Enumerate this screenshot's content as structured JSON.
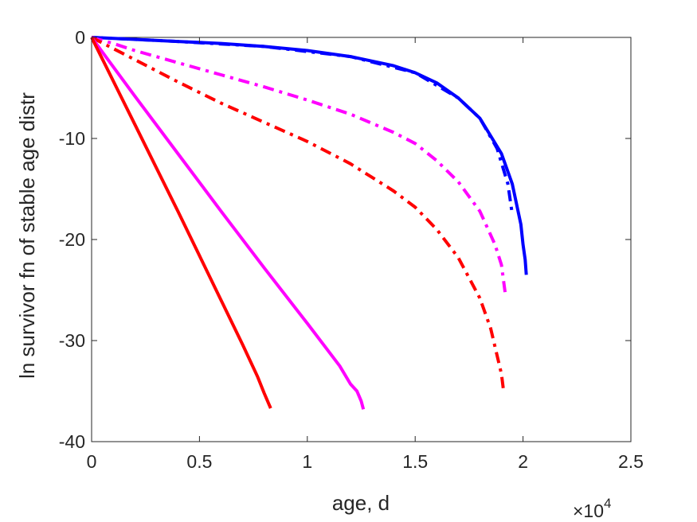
{
  "chart_data": {
    "type": "line",
    "title": "",
    "xlabel": "age, d",
    "ylabel": "ln survivor fn of stable age distr",
    "x_multiplier_label": "×10",
    "x_multiplier_exponent": "4",
    "xlim": [
      0,
      25000
    ],
    "ylim": [
      -40,
      0
    ],
    "xticks": [
      0,
      5000,
      10000,
      15000,
      20000,
      25000
    ],
    "xtick_labels": [
      "0",
      "0.5",
      "1",
      "1.5",
      "2",
      "2.5"
    ],
    "yticks": [
      0,
      -10,
      -20,
      -30,
      -40
    ],
    "ytick_labels": [
      "0",
      "-10",
      "-20",
      "-30",
      "-40"
    ],
    "grid": false,
    "series": [
      {
        "color": "#0000ff",
        "dash": "solid",
        "points": [
          [
            0,
            0
          ],
          [
            2000,
            -0.2
          ],
          [
            4000,
            -0.4
          ],
          [
            6000,
            -0.6
          ],
          [
            8000,
            -0.9
          ],
          [
            10000,
            -1.3
          ],
          [
            12000,
            -1.9
          ],
          [
            14000,
            -2.8
          ],
          [
            15000,
            -3.5
          ],
          [
            16000,
            -4.5
          ],
          [
            17000,
            -6.0
          ],
          [
            18000,
            -8.0
          ],
          [
            19000,
            -11.5
          ],
          [
            19500,
            -14.5
          ],
          [
            19900,
            -18.5
          ],
          [
            20000,
            -20.5
          ],
          [
            20100,
            -22.0
          ],
          [
            20150,
            -23.5
          ]
        ]
      },
      {
        "color": "#0000ff",
        "dash": "dashdot",
        "points": [
          [
            0,
            0
          ],
          [
            4000,
            -0.4
          ],
          [
            8000,
            -0.9
          ],
          [
            12000,
            -1.9
          ],
          [
            15000,
            -3.5
          ],
          [
            17000,
            -6.0
          ],
          [
            18000,
            -8.0
          ],
          [
            18800,
            -11.0
          ],
          [
            19300,
            -14.5
          ],
          [
            19500,
            -17.5
          ]
        ]
      },
      {
        "color": "#ff00ff",
        "dash": "dashdot",
        "points": [
          [
            0,
            0
          ],
          [
            1000,
            -0.6
          ],
          [
            2000,
            -1.3
          ],
          [
            4000,
            -2.5
          ],
          [
            6000,
            -3.7
          ],
          [
            8000,
            -4.9
          ],
          [
            10000,
            -6.2
          ],
          [
            12000,
            -7.6
          ],
          [
            14000,
            -9.4
          ],
          [
            15000,
            -10.5
          ],
          [
            16000,
            -12.2
          ],
          [
            17000,
            -14.3
          ],
          [
            18000,
            -17.2
          ],
          [
            18700,
            -20.5
          ],
          [
            19000,
            -22.5
          ],
          [
            19200,
            -25.7
          ]
        ]
      },
      {
        "color": "#ff0000",
        "dash": "dashdot",
        "points": [
          [
            0,
            0
          ],
          [
            1000,
            -1.1
          ],
          [
            2000,
            -2.2
          ],
          [
            4000,
            -4.4
          ],
          [
            6000,
            -6.5
          ],
          [
            8000,
            -8.4
          ],
          [
            10000,
            -10.3
          ],
          [
            12000,
            -12.5
          ],
          [
            14000,
            -15.2
          ],
          [
            15000,
            -16.8
          ],
          [
            16000,
            -19.0
          ],
          [
            17000,
            -21.8
          ],
          [
            18000,
            -25.8
          ],
          [
            18500,
            -28.8
          ],
          [
            18800,
            -31.5
          ],
          [
            19000,
            -33.3
          ],
          [
            19100,
            -35.0
          ]
        ]
      },
      {
        "color": "#ff00ff",
        "dash": "solid",
        "points": [
          [
            0,
            0
          ],
          [
            2000,
            -5.8
          ],
          [
            4000,
            -11.5
          ],
          [
            6000,
            -17.2
          ],
          [
            8000,
            -22.8
          ],
          [
            10000,
            -28.3
          ],
          [
            11500,
            -32.5
          ],
          [
            12000,
            -34.3
          ],
          [
            12300,
            -35.0
          ],
          [
            12400,
            -35.5
          ],
          [
            12500,
            -36.0
          ],
          [
            12600,
            -36.8
          ]
        ]
      },
      {
        "color": "#ff0000",
        "dash": "solid",
        "points": [
          [
            0,
            0
          ],
          [
            1000,
            -4.3
          ],
          [
            2000,
            -8.6
          ],
          [
            3000,
            -12.9
          ],
          [
            4000,
            -17.2
          ],
          [
            5000,
            -21.6
          ],
          [
            6000,
            -26.0
          ],
          [
            7000,
            -30.4
          ],
          [
            7700,
            -33.6
          ],
          [
            8000,
            -35.2
          ],
          [
            8300,
            -36.7
          ]
        ]
      }
    ]
  }
}
